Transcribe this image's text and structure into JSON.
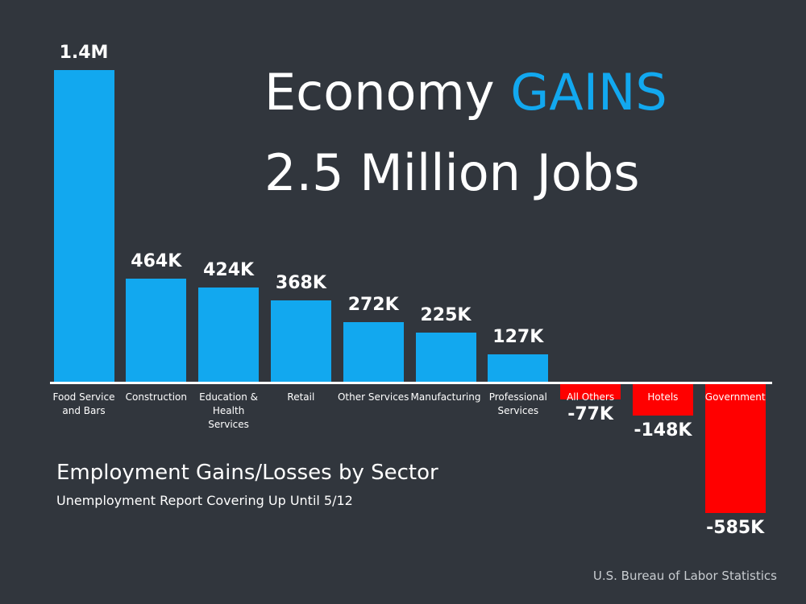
{
  "chart_data": {
    "type": "bar",
    "title": "Economy",
    "title_highlight": "GAINS",
    "title_line2": "2.5 Million Jobs",
    "subtitle": "Employment Gains/Losses by Sector",
    "note": "Unemployment Report Covering Up Until 5/12",
    "source": "U.S. Bureau of Labor Statistics",
    "categories": [
      "Food Service and Bars",
      "Construction",
      "Education & Health Services",
      "Retail",
      "Other Services",
      "Manufacturing",
      "Professional Services",
      "All Others",
      "Hotels",
      "Government"
    ],
    "values": [
      1400000,
      464000,
      424000,
      368000,
      272000,
      225000,
      127000,
      -77000,
      -148000,
      -585000
    ],
    "value_labels": [
      "1.4M",
      "464K",
      "424K",
      "368K",
      "272K",
      "225K",
      "127K",
      "-77K",
      "-148K",
      "-585K"
    ],
    "colors": [
      "#12a8ef",
      "#12a8ef",
      "#12a8ef",
      "#12a8ef",
      "#12a8ef",
      "#12a8ef",
      "#12a8ef",
      "#ff0000",
      "#ff0000",
      "#ff0000"
    ]
  }
}
